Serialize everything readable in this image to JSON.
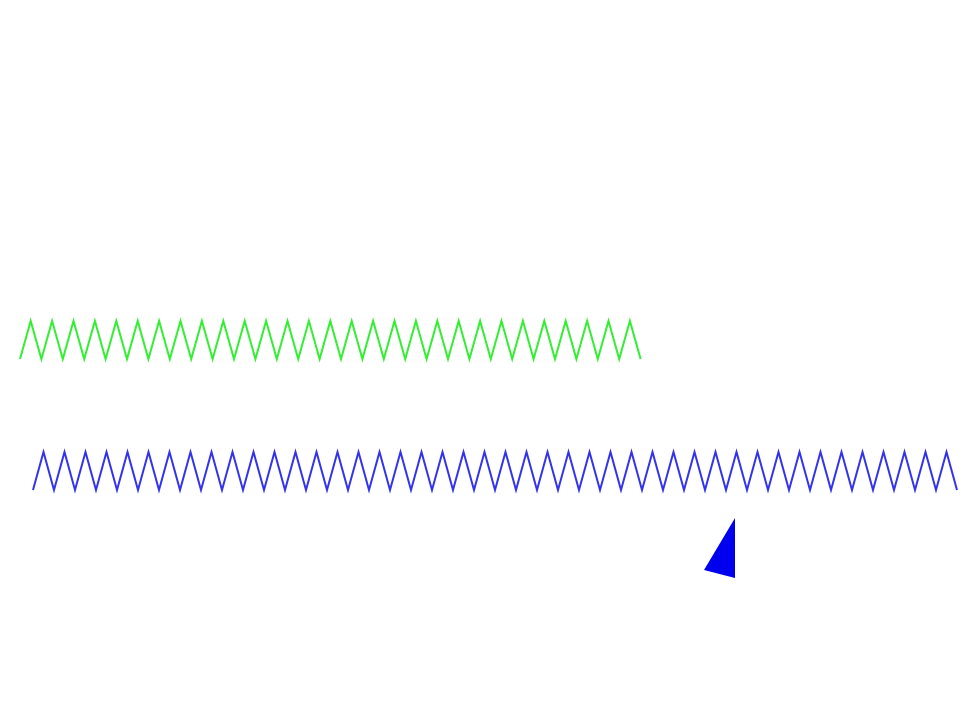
{
  "colors": {
    "background": "#ffffff",
    "green_spring": "#33ee33",
    "blue_spring": "#3333ee",
    "cursor": "#0000ee"
  },
  "springs": [
    {
      "name": "green-zigzag-spring",
      "color_key": "green_spring"
    },
    {
      "name": "blue-zigzag-spring",
      "color_key": "blue_spring"
    }
  ],
  "cursor": {
    "icon": "arrow-pointer-icon",
    "color_key": "cursor"
  }
}
